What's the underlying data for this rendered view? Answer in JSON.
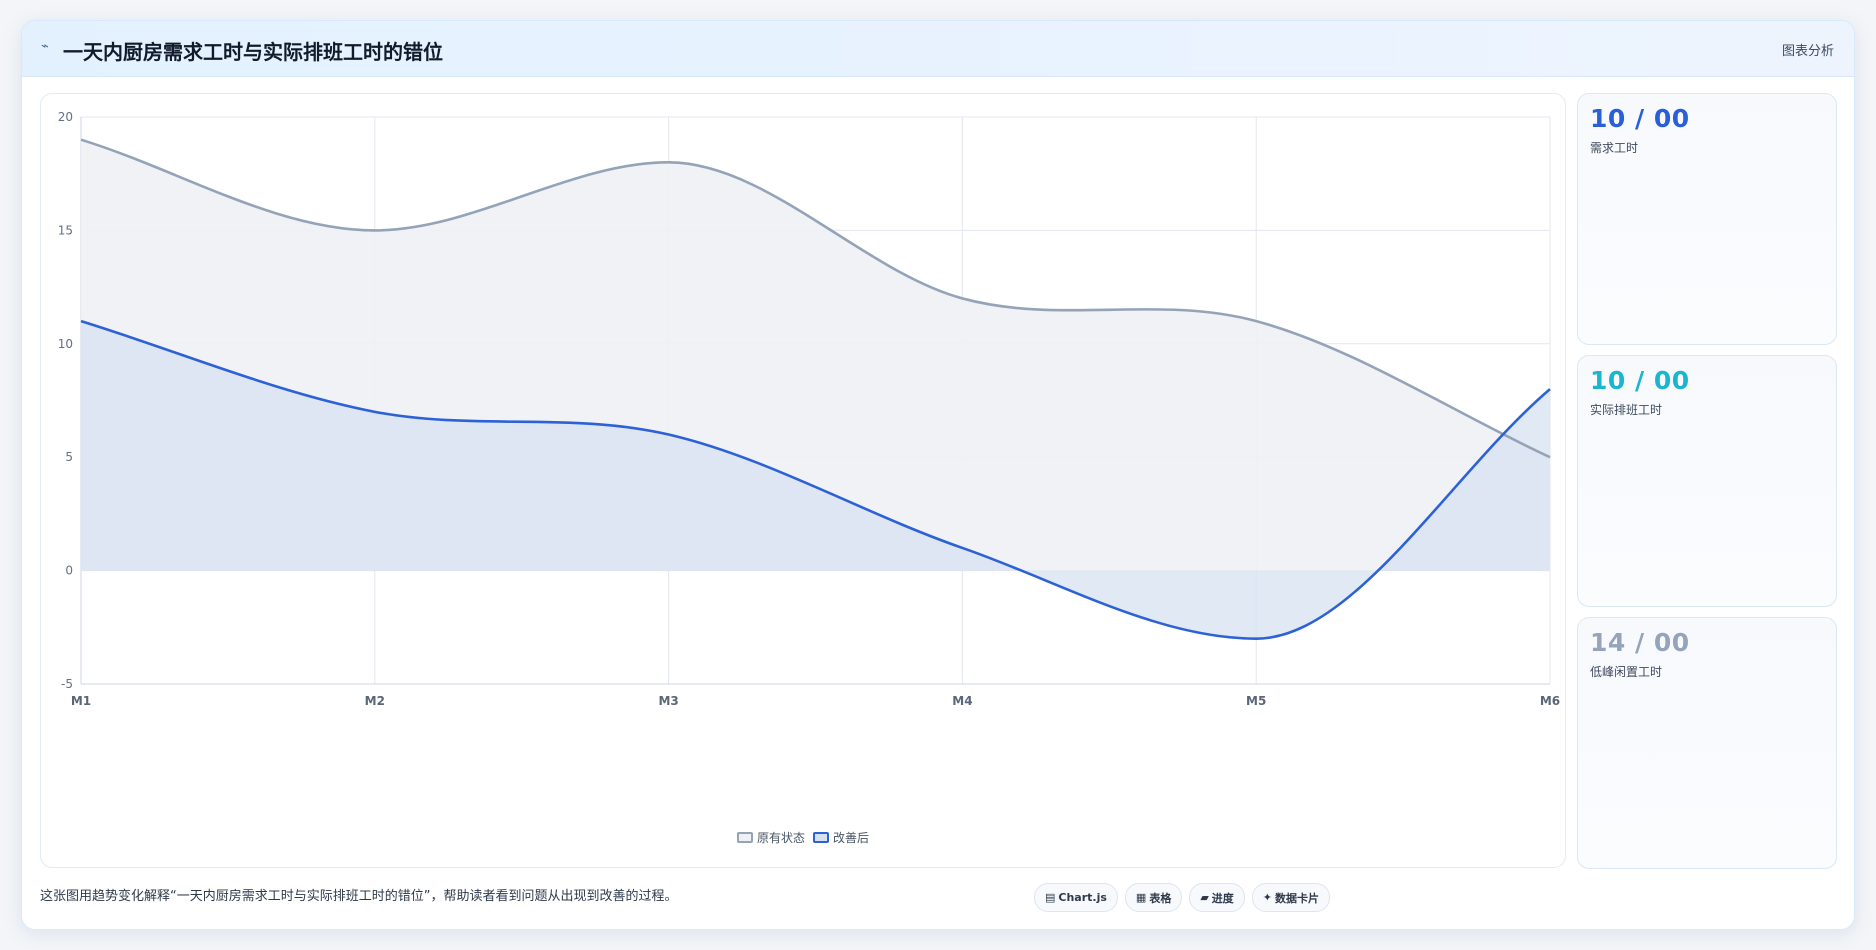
{
  "header": {
    "icon": "chart-line-icon",
    "icon_glyph": "⌁",
    "title": "一天内厨房需求工时与实际排班工时的错位",
    "action_label": "图表分析"
  },
  "stats": [
    {
      "value": "10 / 00",
      "label": "需求工时",
      "color": "#2b5fd9"
    },
    {
      "value": "10 / 00",
      "label": "实际排班工时",
      "color": "#1ab6cf"
    },
    {
      "value": "14 / 00",
      "label": "低峰闲置工时",
      "color": "#95a4bb"
    }
  ],
  "caption": "这张图用趋势变化解释“一天内厨房需求工时与实际排班工时的错位”，帮助读者看到问题从出现到改善的过程。",
  "tags": [
    {
      "icon": "chart-icon",
      "glyph": "▤",
      "label": "Chart.js"
    },
    {
      "icon": "table-icon",
      "glyph": "▦",
      "label": "表格"
    },
    {
      "icon": "progress-icon",
      "glyph": "▰",
      "label": "进度"
    },
    {
      "icon": "sparkle-icon",
      "glyph": "✦",
      "label": "数据卡片"
    }
  ],
  "chart_data": {
    "type": "area",
    "categories": [
      "M1",
      "M2",
      "M3",
      "M4",
      "M5",
      "M6"
    ],
    "series": [
      {
        "name": "原有状态",
        "values": [
          19,
          15,
          18,
          12,
          11,
          5
        ],
        "color": "#94a3b8",
        "fill": "#eef1f5"
      },
      {
        "name": "改善后",
        "values": [
          11,
          7,
          6,
          1,
          -3,
          8
        ],
        "color": "#2d62d6",
        "fill": "#d7e1f0"
      }
    ],
    "ylim": [
      -5,
      20
    ],
    "yticks": [
      -5,
      0,
      5,
      10,
      15,
      20
    ],
    "grid": true,
    "legend": "bottom-center",
    "title": "",
    "xlabel": "",
    "ylabel": ""
  }
}
